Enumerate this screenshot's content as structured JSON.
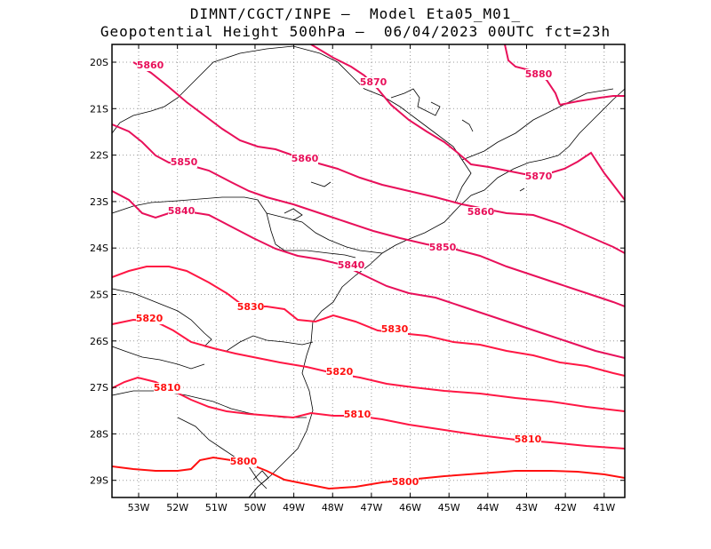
{
  "title": {
    "line1": "DIMNT/CGCT/INPE –  Model Eta05_M01_",
    "line2": "Geopotential Height 500hPa –  06/04/2023 00UTC fct=23h"
  },
  "axes": {
    "lon_ticks": [
      "53W",
      "52W",
      "51W",
      "50W",
      "49W",
      "48W",
      "47W",
      "46W",
      "45W",
      "44W",
      "43W",
      "42W",
      "41W"
    ],
    "lat_ticks": [
      "20S",
      "21S",
      "22S",
      "23S",
      "24S",
      "25S",
      "26S",
      "27S",
      "28S",
      "29S"
    ]
  },
  "colors": {
    "contour_high": "#e8105a",
    "contour_low": "#ff1010",
    "coastline": "#000000",
    "grid": "#9a9a9a"
  },
  "contour_labels": [
    {
      "text": "5880",
      "value": 5880
    },
    {
      "text": "5870",
      "value": 5870
    },
    {
      "text": "5870",
      "value": 5870
    },
    {
      "text": "5860",
      "value": 5860
    },
    {
      "text": "5860",
      "value": 5860
    },
    {
      "text": "5860",
      "value": 5860
    },
    {
      "text": "5850",
      "value": 5850
    },
    {
      "text": "5850",
      "value": 5850
    },
    {
      "text": "5840",
      "value": 5840
    },
    {
      "text": "5840",
      "value": 5840
    },
    {
      "text": "5830",
      "value": 5830
    },
    {
      "text": "5830",
      "value": 5830
    },
    {
      "text": "5820",
      "value": 5820
    },
    {
      "text": "5820",
      "value": 5820
    },
    {
      "text": "5810",
      "value": 5810
    },
    {
      "text": "5810",
      "value": 5810
    },
    {
      "text": "5810",
      "value": 5810
    },
    {
      "text": "5800",
      "value": 5800
    },
    {
      "text": "5800",
      "value": 5800
    }
  ]
}
